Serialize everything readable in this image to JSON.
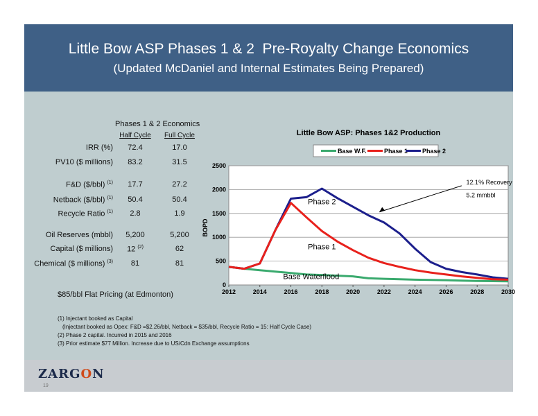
{
  "slide": {
    "title": "Little Bow ASP Phases 1 & 2  Pre-Royalty Change Economics",
    "subtitle": "(Updated McDaniel and Internal Estimates Being Prepared)",
    "page_number": "19",
    "logo": {
      "before": "ZARG",
      "o": "O",
      "after": "N"
    }
  },
  "economics": {
    "heading": "Phases 1 & 2 Economics",
    "col_half": "Half Cycle",
    "col_full": "Full Cycle",
    "rows": [
      {
        "label": "IRR (%)",
        "sup": "",
        "half": "72.4",
        "half_sup": "",
        "full": "17.0"
      },
      {
        "label": "PV10  ($ millions)",
        "sup": "",
        "half": "83.2",
        "half_sup": "",
        "full": "31.5"
      },
      {
        "label": "F&D ($/bbl)",
        "sup": "(1)",
        "half": "17.7",
        "half_sup": "",
        "full": "27.2"
      },
      {
        "label": "Netback ($/bbl)",
        "sup": "(1)",
        "half": "50.4",
        "half_sup": "",
        "full": "50.4"
      },
      {
        "label": "Recycle Ratio",
        "sup": "(1)",
        "half": "2.8",
        "half_sup": "",
        "full": "1.9"
      },
      {
        "label": "Oil Reserves (mbbl)",
        "sup": "",
        "half": "5,200",
        "half_sup": "",
        "full": "5,200"
      },
      {
        "label": "Capital  ($ millions)",
        "sup": "",
        "half": "12",
        "half_sup": "(2)",
        "full": "62"
      },
      {
        "label": "Chemical  ($ millions)",
        "sup": "(3)",
        "half": "81",
        "half_sup": "",
        "full": "81"
      }
    ]
  },
  "pricing": "$85/bbl Flat Pricing (at Edmonton)",
  "notes": [
    "(1)  Injectant  booked as Capital",
    "(Injectant booked as Opex: F&D =$2.26/bbl, Netback = $35/bbl, Recycle Ratio = 15: Half Cycle Case)",
    "(2) Phase 2 capital.  Incurred in 2015 and 2016",
    "(3) Prior estimate $77 Million.  Increase due to US/Cdn Exchange assumptions"
  ],
  "chart_data": {
    "type": "line",
    "title": "Little Bow ASP: Phases 1&2 Production",
    "xlabel": "",
    "ylabel": "BOPD",
    "xlim": [
      2012,
      2030
    ],
    "ylim": [
      0,
      2500
    ],
    "x_ticks": [
      "2012",
      "2014",
      "2016",
      "2018",
      "2020",
      "2022",
      "2024",
      "2026",
      "2028",
      "2030"
    ],
    "y_ticks": [
      "0",
      "500",
      "1000",
      "1500",
      "2000",
      "2500"
    ],
    "grid": true,
    "legend_position": "top",
    "series": [
      {
        "name": "Base W.F.",
        "color": "#3aaa6e",
        "x": [
          2012,
          2013,
          2014,
          2015,
          2016,
          2017,
          2018,
          2019,
          2020,
          2021,
          2022,
          2023,
          2024,
          2025,
          2026,
          2027,
          2028,
          2029,
          2030
        ],
        "y": [
          380,
          340,
          310,
          280,
          250,
          220,
          210,
          195,
          180,
          140,
          130,
          120,
          110,
          105,
          100,
          90,
          85,
          80,
          75
        ]
      },
      {
        "name": "Phase 1",
        "color": "#e8211c",
        "x": [
          2012,
          2013,
          2014,
          2015,
          2016,
          2017,
          2018,
          2019,
          2020,
          2021,
          2022,
          2023,
          2024,
          2025,
          2026,
          2027,
          2028,
          2029,
          2030
        ],
        "y": [
          380,
          340,
          450,
          1150,
          1720,
          1420,
          1130,
          910,
          730,
          570,
          460,
          380,
          310,
          260,
          220,
          180,
          150,
          120,
          110
        ]
      },
      {
        "name": "Phase 2",
        "color": "#1c1f8c",
        "x": [
          2012,
          2013,
          2014,
          2015,
          2016,
          2017,
          2018,
          2019,
          2020,
          2021,
          2022,
          2023,
          2024,
          2025,
          2026,
          2027,
          2028,
          2029,
          2030
        ],
        "y": [
          380,
          340,
          450,
          1150,
          1810,
          1840,
          2020,
          1820,
          1640,
          1460,
          1310,
          1080,
          760,
          480,
          340,
          270,
          220,
          160,
          130
        ]
      }
    ],
    "annotations": [
      {
        "text": "12.1% Recovery",
        "x": 2027.3,
        "y": 2110
      },
      {
        "text": "5.2 mmbbl",
        "x": 2027.3,
        "y": 1840
      },
      {
        "text": "Phase 2",
        "x": 2017.1,
        "y": 1690
      },
      {
        "text": "Phase 1",
        "x": 2017.1,
        "y": 750
      },
      {
        "text": "Base Waterflood",
        "x": 2015.5,
        "y": 120
      }
    ]
  }
}
